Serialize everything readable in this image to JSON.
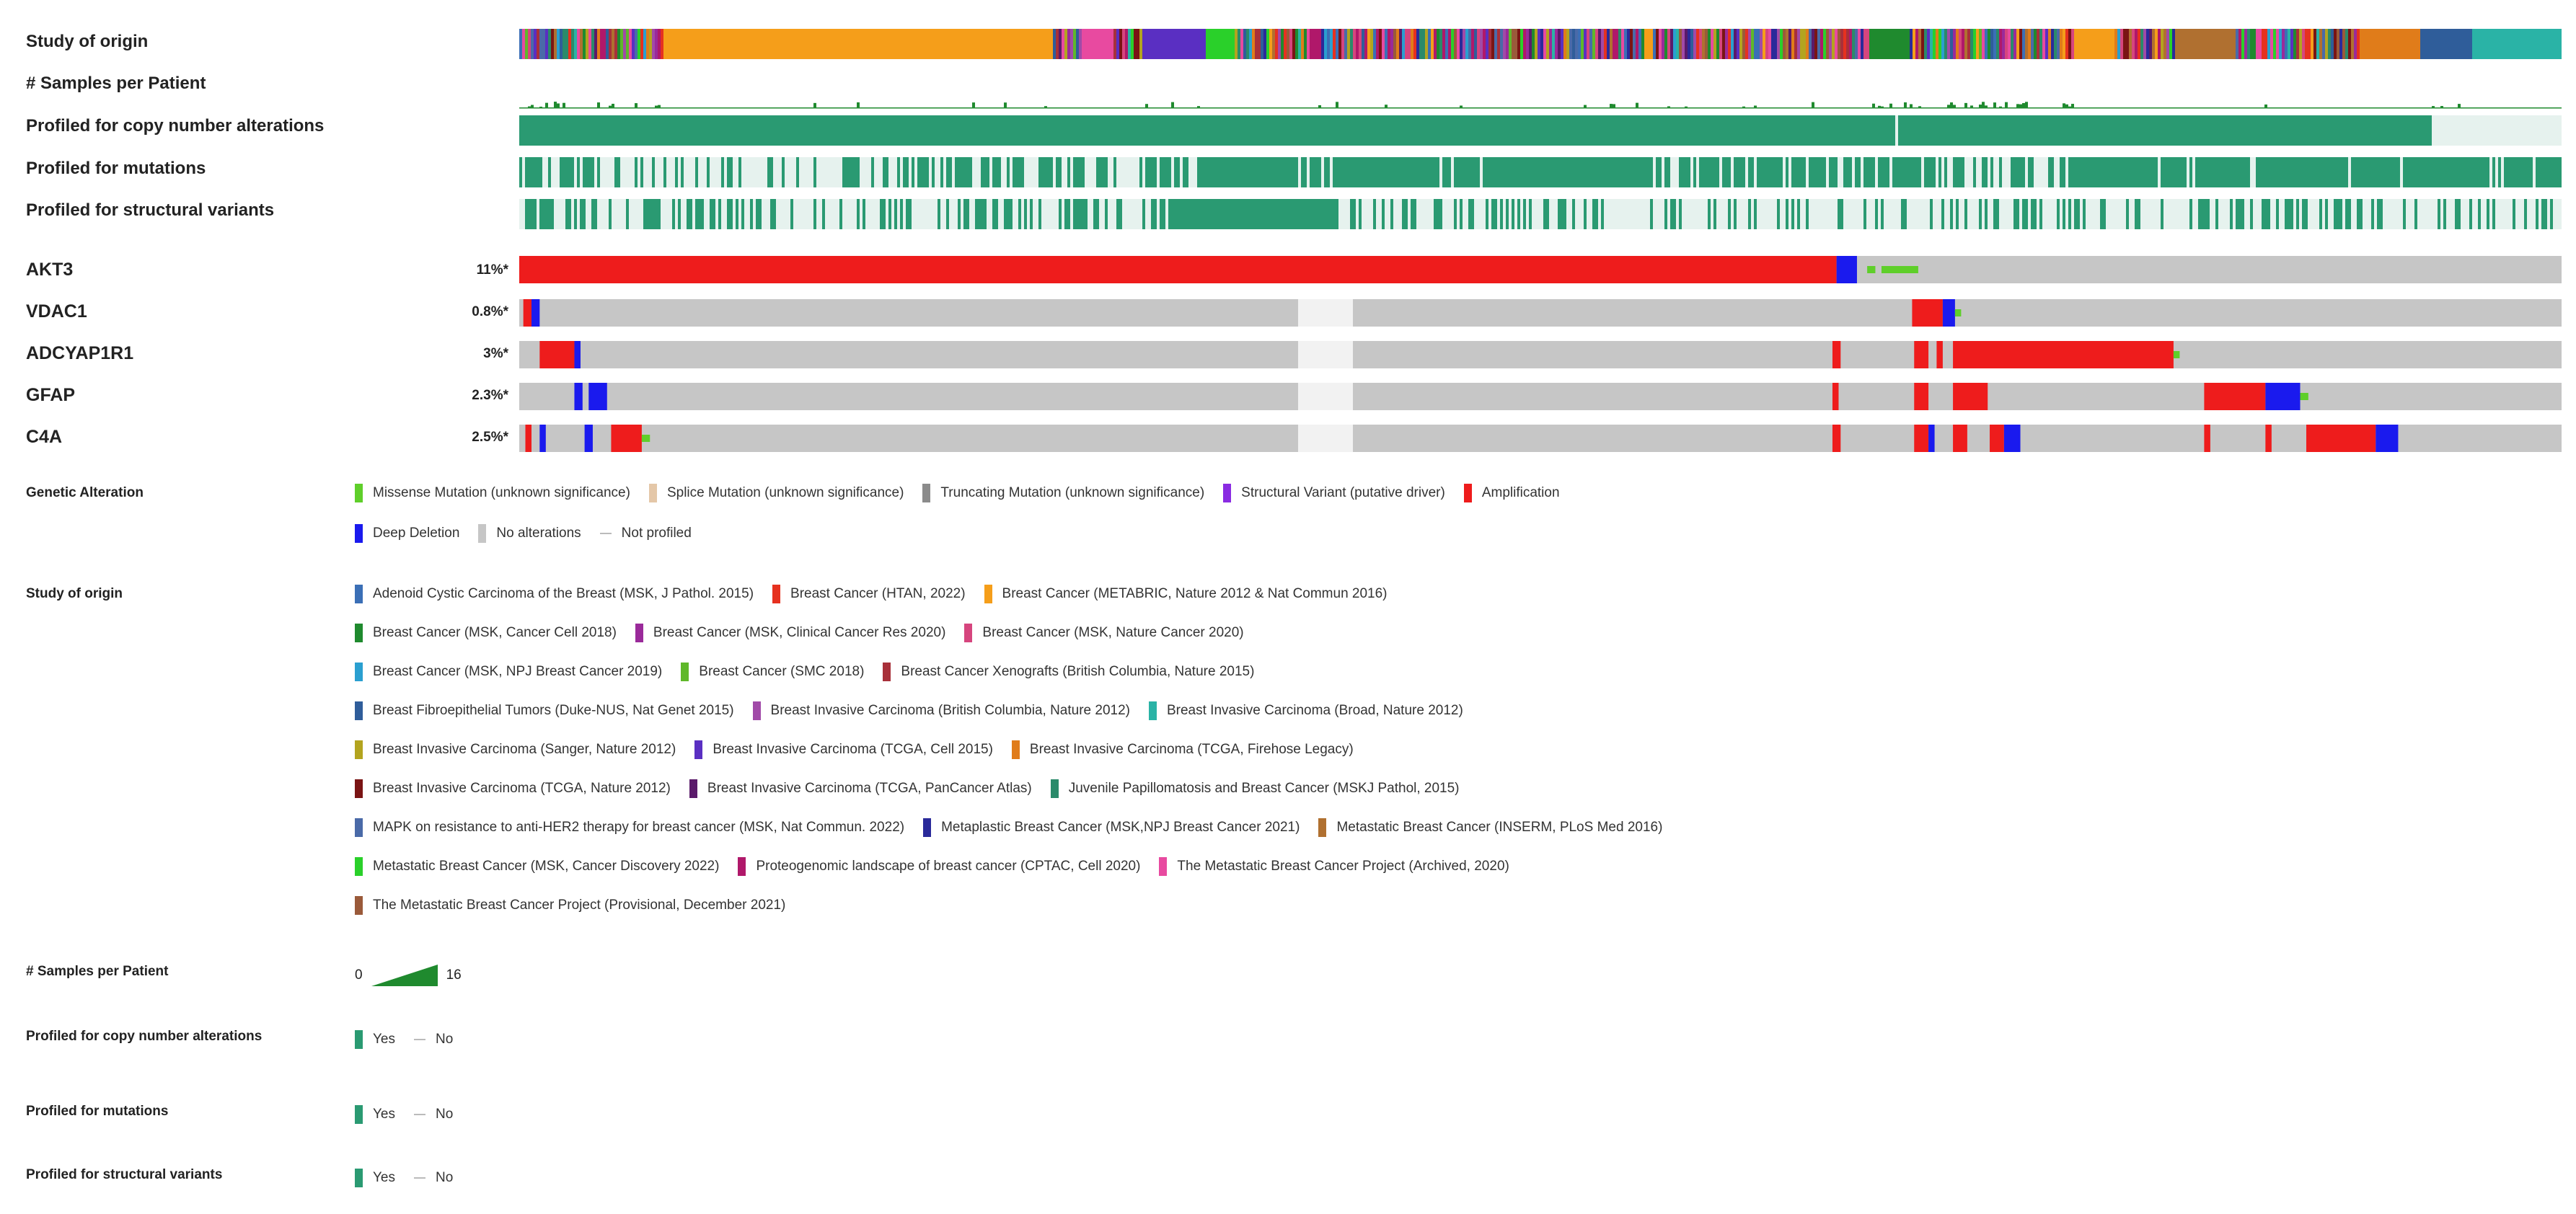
{
  "tracks": {
    "study_of_origin": "Study of origin",
    "samples_per_patient": "# Samples per Patient",
    "profiled_cna": "Profiled for copy number alterations",
    "profiled_mut": "Profiled for mutations",
    "profiled_sv": "Profiled for structural variants"
  },
  "chart_data": {
    "type": "oncoprint",
    "genes": [
      {
        "name": "AKT3",
        "pct": "11%*"
      },
      {
        "name": "VDAC1",
        "pct": "0.8%*"
      },
      {
        "name": "ADCYAP1R1",
        "pct": "3%*"
      },
      {
        "name": "GFAP",
        "pct": "2.3%*"
      },
      {
        "name": "C4A",
        "pct": "2.5%*"
      }
    ],
    "colors": {
      "amplification": "#ee1c1c",
      "deep_deletion": "#1a1aee",
      "no_alteration": "#c6c6c6",
      "missense": "#5fcf2a",
      "profiled_yes": "#2a9a72",
      "not_profiled": "#e6f2ee"
    }
  },
  "legend": {
    "genetic_alteration": {
      "title": "Genetic Alteration",
      "items": [
        {
          "label": "Missense Mutation (unknown significance)",
          "color": "#5fcf2a"
        },
        {
          "label": "Splice Mutation (unknown significance)",
          "color": "#e4c7a8"
        },
        {
          "label": "Truncating Mutation (unknown significance)",
          "color": "#8b8b8b"
        },
        {
          "label": "Structural Variant (putative driver)",
          "color": "#8a2be2"
        },
        {
          "label": "Amplification",
          "color": "#ee1c1c"
        },
        {
          "label": "Deep Deletion",
          "color": "#1a1aee"
        },
        {
          "label": "No alterations",
          "color": "#c6c6c6"
        },
        {
          "label": "Not profiled",
          "color": ""
        }
      ]
    },
    "study_of_origin": {
      "title": "Study of origin",
      "items": [
        {
          "label": "Adenoid Cystic Carcinoma of the Breast (MSK, J Pathol. 2015)",
          "color": "#3b6fb6"
        },
        {
          "label": "Breast Cancer (HTAN, 2022)",
          "color": "#e6311f"
        },
        {
          "label": "Breast Cancer (METABRIC, Nature 2012 & Nat Commun 2016)",
          "color": "#f59e1a"
        },
        {
          "label": "Breast Cancer (MSK, Cancer Cell 2018)",
          "color": "#1f8a2e"
        },
        {
          "label": "Breast Cancer (MSK, Clinical Cancer Res 2020)",
          "color": "#9a2a9a"
        },
        {
          "label": "Breast Cancer (MSK, Nature Cancer 2020)",
          "color": "#d6457e"
        },
        {
          "label": "Breast Cancer (MSK, NPJ Breast Cancer 2019)",
          "color": "#2a9fd0"
        },
        {
          "label": "Breast Cancer (SMC 2018)",
          "color": "#5fb82a"
        },
        {
          "label": "Breast Cancer Xenografts (British Columbia, Nature 2015)",
          "color": "#a8303a"
        },
        {
          "label": "Breast Fibroepithelial Tumors (Duke-NUS, Nat Genet 2015)",
          "color": "#2f5d9a"
        },
        {
          "label": "Breast Invasive Carcinoma (British Columbia, Nature 2012)",
          "color": "#a14aa8"
        },
        {
          "label": "Breast Invasive Carcinoma (Broad, Nature 2012)",
          "color": "#2ab3a6"
        },
        {
          "label": "Breast Invasive Carcinoma (Sanger, Nature 2012)",
          "color": "#b3a41f"
        },
        {
          "label": "Breast Invasive Carcinoma (TCGA, Cell 2015)",
          "color": "#5a2fc2"
        },
        {
          "label": "Breast Invasive Carcinoma (TCGA, Firehose Legacy)",
          "color": "#e07c1a"
        },
        {
          "label": "Breast Invasive Carcinoma (TCGA, Nature 2012)",
          "color": "#7a1414"
        },
        {
          "label": "Breast Invasive Carcinoma (TCGA, PanCancer Atlas)",
          "color": "#5a1a6a"
        },
        {
          "label": "Juvenile Papillomatosis and Breast Cancer (MSKJ Pathol, 2015)",
          "color": "#2a8a6a"
        },
        {
          "label": "MAPK on resistance to anti-HER2 therapy for breast cancer (MSK, Nat Commun. 2022)",
          "color": "#4a6aa8"
        },
        {
          "label": "Metaplastic Breast Cancer (MSK,NPJ Breast Cancer 2021)",
          "color": "#2a2a9a"
        },
        {
          "label": "Metastatic Breast Cancer (INSERM, PLoS Med 2016)",
          "color": "#b07030"
        },
        {
          "label": "Metastatic Breast Cancer (MSK, Cancer Discovery 2022)",
          "color": "#2ad02a"
        },
        {
          "label": "Proteogenomic landscape of breast cancer (CPTAC, Cell 2020)",
          "color": "#b0186a"
        },
        {
          "label": "The Metastatic Breast Cancer Project (Archived, 2020)",
          "color": "#e84aa0"
        },
        {
          "label": "The Metastatic Breast Cancer Project (Provisional, December 2021)",
          "color": "#9a5a3a"
        }
      ]
    },
    "samples_per_patient": {
      "title": "# Samples per Patient",
      "min": "0",
      "max": "16"
    },
    "profiled_cna": {
      "title": "Profiled for copy number alterations",
      "yes": "Yes",
      "no": "No"
    },
    "profiled_mut": {
      "title": "Profiled for mutations",
      "yes": "Yes",
      "no": "No"
    },
    "profiled_sv": {
      "title": "Profiled for structural variants",
      "yes": "Yes",
      "no": "No"
    }
  }
}
